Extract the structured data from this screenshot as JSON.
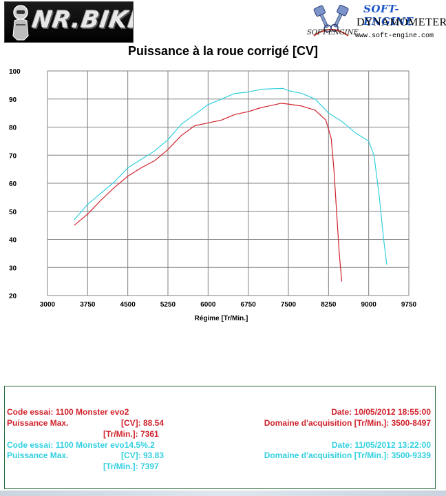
{
  "header": {
    "left_logo_text": "NR.BIKE",
    "right_brand": "SOFT-ENGINE",
    "right_subtitle": "DYNAMOMETERS",
    "right_small_logo": "SOFT-ENGINE",
    "right_url": "www.soft-engine.com"
  },
  "chart_data": {
    "type": "line",
    "title": "Puissance à la roue corrigé [CV]",
    "xlabel": "Régime [Tr/Min.]",
    "ylabel": "",
    "xlim": [
      3000,
      9750
    ],
    "ylim": [
      20,
      100
    ],
    "x_ticks": [
      "3000",
      "3750",
      "4500",
      "5250",
      "6000",
      "6750",
      "7500",
      "8250",
      "9000",
      "9750"
    ],
    "y_ticks": [
      "100",
      "90",
      "80",
      "70",
      "60",
      "50",
      "40",
      "30",
      "20"
    ],
    "grid": true,
    "colors": {
      "series1": "#d0202a",
      "series2": "#30d0e0"
    },
    "series": [
      {
        "x": [
          3500,
          3750,
          4000,
          4250,
          4500,
          4750,
          5000,
          5250,
          5500,
          5750,
          6000,
          6250,
          6500,
          6750,
          7000,
          7250,
          7361,
          7500,
          7750,
          8000,
          8200,
          8300,
          8350,
          8400,
          8450,
          8497
        ],
        "values": [
          45,
          49,
          54,
          58.5,
          62.5,
          65.5,
          68,
          72,
          77,
          80.5,
          81.5,
          82.5,
          84.5,
          85.5,
          87,
          88,
          88.5,
          88.2,
          87.5,
          86,
          82.5,
          76,
          65,
          50,
          35,
          25
        ]
      },
      {
        "x": [
          3500,
          3750,
          4000,
          4250,
          4500,
          4750,
          5000,
          5250,
          5500,
          5750,
          6000,
          6250,
          6500,
          6750,
          7000,
          7250,
          7397,
          7500,
          7750,
          8000,
          8250,
          8500,
          8750,
          9000,
          9100,
          9200,
          9280,
          9339
        ],
        "values": [
          47,
          52.5,
          56.5,
          60.5,
          65.5,
          68.5,
          71.5,
          75.5,
          81,
          84.5,
          88,
          90,
          92,
          92.5,
          93.5,
          93.7,
          93.8,
          93,
          92,
          90,
          85,
          82,
          78,
          75,
          70,
          55,
          40,
          31
        ]
      }
    ]
  },
  "info": {
    "red": {
      "code_label": "Code essai: 1100 Monster evo2",
      "date_label": "Date: 10/05/2012 18:55:00",
      "power_label": "Puissance Max.",
      "cv_unit": "[CV]: 88.54",
      "domain_label": "Domaine d'acquisition [Tr/Min.]: 3500-8497",
      "rpm_line": "[Tr/Min.]: 7361"
    },
    "cyan": {
      "code_label": "Code essai: 1100 Monster evo14.5%.2",
      "date_label": "Date: 11/05/2012 13:22:00",
      "power_label": "Puissance Max.",
      "cv_unit": "[CV]: 93.83",
      "domain_label": "Domaine d'acquisition [Tr/Min.]: 3500-9339",
      "rpm_line": "[Tr/Min.]: 7397"
    }
  }
}
